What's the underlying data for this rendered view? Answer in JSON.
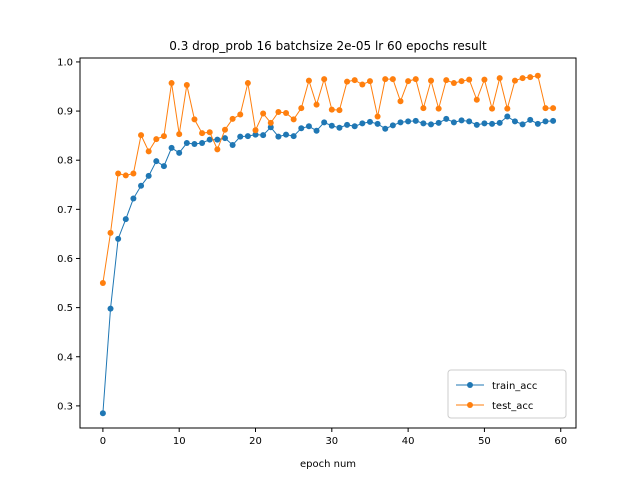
{
  "chart_data": {
    "type": "line",
    "title": "0.3 drop_prob 16 batchsize  2e-05 lr 60 epochs result",
    "xlabel": "epoch num",
    "ylabel": "",
    "xlim": [
      -3,
      62
    ],
    "ylim": [
      0.255,
      1.008
    ],
    "xticks": [
      0,
      10,
      20,
      30,
      40,
      50,
      60
    ],
    "yticks": [
      0.3,
      0.4,
      0.5,
      0.6,
      0.7,
      0.8,
      0.9,
      1.0
    ],
    "xtick_labels": [
      "0",
      "10",
      "20",
      "30",
      "40",
      "50",
      "60"
    ],
    "ytick_labels": [
      "0.3",
      "0.4",
      "0.5",
      "0.6",
      "0.7",
      "0.8",
      "0.9",
      "1.0"
    ],
    "grid": false,
    "legend_position": "lower-right",
    "x": [
      0,
      1,
      2,
      3,
      4,
      5,
      6,
      7,
      8,
      9,
      10,
      11,
      12,
      13,
      14,
      15,
      16,
      17,
      18,
      19,
      20,
      21,
      22,
      23,
      24,
      25,
      26,
      27,
      28,
      29,
      30,
      31,
      32,
      33,
      34,
      35,
      36,
      37,
      38,
      39,
      40,
      41,
      42,
      43,
      44,
      45,
      46,
      47,
      48,
      49,
      50,
      51,
      52,
      53,
      54,
      55,
      56,
      57,
      58,
      59
    ],
    "series": [
      {
        "name": "train_acc",
        "color": "#1f77b4",
        "values": [
          0.285,
          0.498,
          0.64,
          0.68,
          0.722,
          0.748,
          0.768,
          0.798,
          0.788,
          0.825,
          0.815,
          0.835,
          0.833,
          0.835,
          0.842,
          0.842,
          0.845,
          0.831,
          0.848,
          0.849,
          0.852,
          0.851,
          0.867,
          0.848,
          0.852,
          0.849,
          0.865,
          0.869,
          0.86,
          0.877,
          0.87,
          0.866,
          0.872,
          0.869,
          0.875,
          0.878,
          0.874,
          0.864,
          0.871,
          0.877,
          0.879,
          0.88,
          0.875,
          0.873,
          0.876,
          0.884,
          0.877,
          0.881,
          0.879,
          0.872,
          0.875,
          0.874,
          0.876,
          0.889,
          0.879,
          0.873,
          0.882,
          0.874,
          0.879,
          0.88
        ]
      },
      {
        "name": "test_acc",
        "color": "#ff7f0e",
        "values": [
          0.55,
          0.652,
          0.773,
          0.769,
          0.773,
          0.851,
          0.818,
          0.843,
          0.849,
          0.957,
          0.853,
          0.953,
          0.883,
          0.855,
          0.857,
          0.822,
          0.862,
          0.884,
          0.893,
          0.957,
          0.861,
          0.895,
          0.876,
          0.898,
          0.896,
          0.883,
          0.906,
          0.962,
          0.913,
          0.965,
          0.903,
          0.902,
          0.96,
          0.963,
          0.954,
          0.961,
          0.889,
          0.965,
          0.965,
          0.92,
          0.961,
          0.965,
          0.906,
          0.962,
          0.905,
          0.963,
          0.957,
          0.961,
          0.964,
          0.923,
          0.964,
          0.905,
          0.967,
          0.905,
          0.962,
          0.967,
          0.969,
          0.972,
          0.906,
          0.906
        ]
      }
    ]
  }
}
